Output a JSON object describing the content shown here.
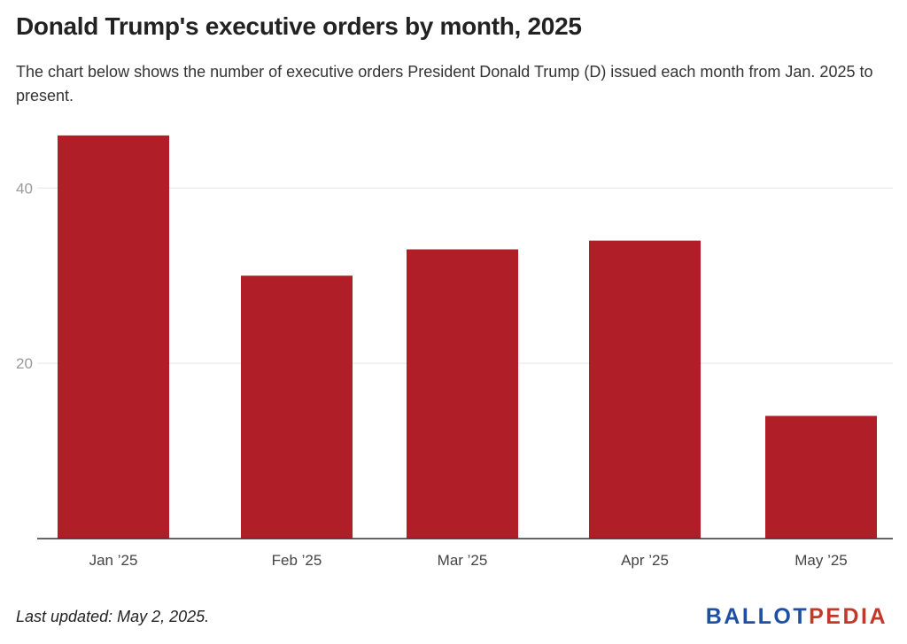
{
  "header": {
    "title": "Donald Trump's executive orders by month, 2025",
    "subtitle": "The chart below shows the number of executive orders President Donald Trump (D) issued each month from Jan. 2025 to present."
  },
  "footer": {
    "note": "Last updated: May 2, 2025.",
    "logo_part1": "BALLOT",
    "logo_part2": "PEDIA"
  },
  "colors": {
    "bar": "#b01e28",
    "grid": "#e6e6e6",
    "axis": "#333333",
    "tick_label": "#999999",
    "category_label": "#444444",
    "logo_blue": "#1f4fa2",
    "logo_red": "#c0392b"
  },
  "chart_data": {
    "type": "bar",
    "title": "Donald Trump's executive orders by month, 2025",
    "categories": [
      "Jan ’25",
      "Feb ’25",
      "Mar ’25",
      "Apr ’25",
      "May ’25"
    ],
    "values": [
      46,
      30,
      33,
      34,
      14
    ],
    "xlabel": "",
    "ylabel": "",
    "ylim": [
      0,
      47
    ],
    "yticks": [
      20,
      40
    ],
    "grid": true,
    "legend": "none"
  }
}
